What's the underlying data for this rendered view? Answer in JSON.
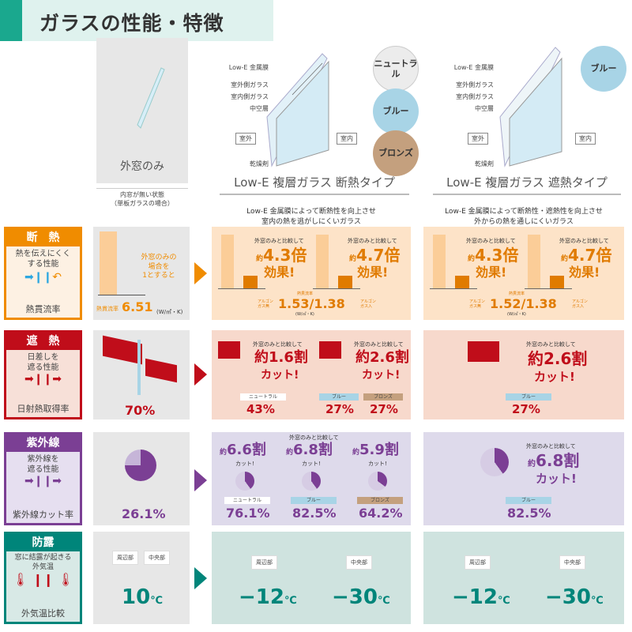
{
  "header": {
    "title": "ガラスの性能・特徴"
  },
  "colors": {
    "insulation": "#f08c00",
    "shield": "#c00d1a",
    "uv": "#7b3f94",
    "dew": "#00857a",
    "neutral": "#ececec",
    "blue": "#a8d4e6",
    "bronze": "#c4a07e"
  },
  "columns": {
    "single": {
      "title": "外窓のみ",
      "caption": "内窓が無い状態\n（単板ガラスの場合）"
    },
    "insulating": {
      "title": "Low-E 複層ガラス 断熱タイプ",
      "desc": "Low-E 金属膜によって断熱性を向上させ\n室内の熱を逃がしにくいガラス",
      "colors": [
        "ニュートラル",
        "ブルー",
        "ブロンズ"
      ]
    },
    "shielding": {
      "title": "Low-E 複層ガラス 遮熱タイプ",
      "desc": "Low-E 金属膜によって断熱性・遮熱性を向上させ\n外からの熱を通しにくいガラス",
      "colors": [
        "ブルー"
      ]
    }
  },
  "diagram_labels": {
    "lowe": "Low-E 金属膜",
    "outer": "室外側ガラス",
    "inner": "室内側ガラス",
    "air": "中空層",
    "outside": "室外",
    "inside": "室内",
    "desiccant": "乾燥剤"
  },
  "rows": {
    "insulation": {
      "title": "断　熱",
      "sub": "熱を伝えにくく\nする性能",
      "footer": "熱貫流率",
      "note": "※3",
      "single": {
        "text": "外窓のみの\n場合を\n1とすると",
        "label": "熱貫流率",
        "value": "6.51",
        "note": "※3",
        "unit": "(W/㎡・K)"
      },
      "compare": "外窓のみと比較して",
      "approx": "約",
      "effect": "効果!",
      "times_suffix": "倍",
      "no": "の",
      "insulating": {
        "a": "4.3",
        "b": "4.7",
        "label": "熱貫流率",
        "left": "アルゴン\nガス無",
        "right": "アルゴン\nガス入",
        "value": "1.53/1.38",
        "unit": "(W/㎡・K)"
      },
      "shielding": {
        "a": "4.3",
        "b": "4.7",
        "label": "熱貫流率",
        "left": "アルゴン\nガス無",
        "right": "アルゴン\nガス入",
        "value": "1.52/1.38",
        "unit": "(W/㎡・K)"
      }
    },
    "shield": {
      "title": "遮　熱",
      "sub": "日差しを\n遮る性能",
      "footer": "日射熱取得率",
      "note": "※4",
      "single": {
        "value": "70%"
      },
      "compare": "外窓のみと比較して",
      "cut": "カット!",
      "insulating": [
        {
          "approx": "約1.6割",
          "tag": "ニュートラル",
          "value": "43%"
        },
        {
          "approx": "約2.6割",
          "tags": [
            "ブルー",
            "ブロンズ"
          ],
          "values": [
            "27%",
            "27%"
          ]
        }
      ],
      "shielding": {
        "approx": "約2.6割",
        "tag": "ブルー",
        "value": "27%"
      }
    },
    "uv": {
      "title": "紫外線",
      "sub": "紫外線を\n遮る性能",
      "footer": "紫外線カット率",
      "note": "※5",
      "single": {
        "value": "26.1%"
      },
      "compare": "外窓のみと比較して",
      "cut": "カット!",
      "insulating": [
        {
          "approx": "約",
          "num": "6.6割",
          "tag": "ニュートラル",
          "value": "76.1%"
        },
        {
          "approx": "約",
          "num": "6.8割",
          "tag": "ブルー",
          "value": "82.5%"
        },
        {
          "approx": "約",
          "num": "5.9割",
          "tag": "ブロンズ",
          "value": "64.2%"
        }
      ],
      "shielding": {
        "approx": "約",
        "num": "6.8割",
        "tag": "ブルー",
        "value": "82.5%"
      }
    },
    "dew": {
      "title": "防露",
      "sub": "窓に結露が起きる\n外気温",
      "footer": "外気温比較",
      "note": "※6",
      "edge": "周辺部",
      "center": "中央部",
      "unit": "℃",
      "single": {
        "value": "10"
      },
      "insulating": {
        "value": "−12",
        "value2": "−30"
      },
      "shielding": {
        "value": "−12",
        "value2": "−30"
      }
    }
  }
}
